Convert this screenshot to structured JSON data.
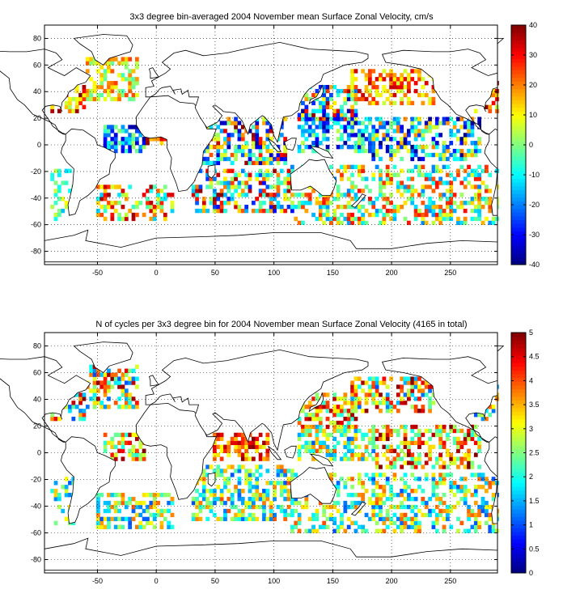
{
  "chart_data": [
    {
      "type": "heatmap",
      "title": "3x3 degree bin-averaged 2004 November mean Surface Zonal Velocity, cm/s",
      "xlabel": "",
      "ylabel": "",
      "xlim": [
        -95,
        290
      ],
      "ylim": [
        -90,
        90
      ],
      "x_ticks": [
        -50,
        0,
        50,
        100,
        150,
        200,
        250
      ],
      "y_ticks": [
        -80,
        -60,
        -40,
        -20,
        0,
        20,
        40,
        60,
        80
      ],
      "grid": true,
      "bin_size_deg": 3,
      "colorbar": {
        "min": -40,
        "max": 40,
        "ticks": [
          -40,
          -30,
          -20,
          -10,
          0,
          10,
          20,
          30,
          40
        ],
        "colormap": "jet"
      },
      "regions": [
        {
          "lon": [
            -60,
            -15
          ],
          "lat": [
            35,
            65
          ],
          "range": [
            -5,
            25
          ],
          "density": 0.55
        },
        {
          "lon": [
            -90,
            -60
          ],
          "lat": [
            25,
            45
          ],
          "range": [
            0,
            40
          ],
          "density": 0.55
        },
        {
          "lon": [
            -45,
            -10
          ],
          "lat": [
            -5,
            15
          ],
          "range": [
            -40,
            5
          ],
          "density": 0.6
        },
        {
          "lon": [
            -10,
            15
          ],
          "lat": [
            0,
            8
          ],
          "range": [
            10,
            40
          ],
          "density": 0.6
        },
        {
          "lon": [
            -50,
            15
          ],
          "lat": [
            -55,
            -30
          ],
          "range": [
            -15,
            40
          ],
          "density": 0.45
        },
        {
          "lon": [
            -90,
            -70
          ],
          "lat": [
            -55,
            -20
          ],
          "range": [
            -15,
            10
          ],
          "density": 0.35
        },
        {
          "lon": [
            40,
            110
          ],
          "lat": [
            -15,
            20
          ],
          "range": [
            -40,
            40
          ],
          "density": 0.55
        },
        {
          "lon": [
            30,
            115
          ],
          "lat": [
            -50,
            -20
          ],
          "range": [
            -30,
            40
          ],
          "density": 0.5
        },
        {
          "lon": [
            120,
            170
          ],
          "lat": [
            20,
            45
          ],
          "range": [
            -40,
            40
          ],
          "density": 0.6
        },
        {
          "lon": [
            120,
            185
          ],
          "lat": [
            -5,
            20
          ],
          "range": [
            -40,
            5
          ],
          "density": 0.6
        },
        {
          "lon": [
            165,
            235
          ],
          "lat": [
            30,
            55
          ],
          "range": [
            5,
            35
          ],
          "density": 0.55
        },
        {
          "lon": [
            185,
            275
          ],
          "lat": [
            -12,
            20
          ],
          "range": [
            -40,
            20
          ],
          "density": 0.55
        },
        {
          "lon": [
            115,
            290
          ],
          "lat": [
            -60,
            -15
          ],
          "range": [
            -20,
            30
          ],
          "density": 0.45
        },
        {
          "lon": [
            270,
            290
          ],
          "lat": [
            25,
            50
          ],
          "range": [
            0,
            40
          ],
          "density": 0.5
        }
      ]
    },
    {
      "type": "heatmap",
      "title": "N of cycles per 3x3 degree bin for 2004 November mean Surface Zonal Velocity (4165 in total)",
      "xlabel": "",
      "ylabel": "",
      "xlim": [
        -95,
        290
      ],
      "ylim": [
        -90,
        90
      ],
      "x_ticks": [
        -50,
        0,
        50,
        100,
        150,
        200,
        250
      ],
      "y_ticks": [
        -80,
        -60,
        -40,
        -20,
        0,
        20,
        40,
        60,
        80
      ],
      "grid": true,
      "bin_size_deg": 3,
      "total_cycles": 4165,
      "colorbar": {
        "min": 0,
        "max": 5,
        "ticks": [
          0,
          0.5,
          1,
          1.5,
          2,
          2.5,
          3,
          3.5,
          4,
          4.5,
          5
        ],
        "colormap": "jet"
      },
      "regions": [
        {
          "lon": [
            -60,
            -15
          ],
          "lat": [
            35,
            65
          ],
          "range": [
            1,
            5
          ],
          "density": 0.55
        },
        {
          "lon": [
            -90,
            -60
          ],
          "lat": [
            25,
            45
          ],
          "range": [
            1,
            5
          ],
          "density": 0.55
        },
        {
          "lon": [
            -45,
            -10
          ],
          "lat": [
            -5,
            15
          ],
          "range": [
            2,
            5
          ],
          "density": 0.6
        },
        {
          "lon": [
            -50,
            15
          ],
          "lat": [
            -55,
            -30
          ],
          "range": [
            1,
            4
          ],
          "density": 0.45
        },
        {
          "lon": [
            -90,
            -70
          ],
          "lat": [
            -55,
            -20
          ],
          "range": [
            1,
            3.5
          ],
          "density": 0.35
        },
        {
          "lon": [
            50,
            95
          ],
          "lat": [
            -5,
            15
          ],
          "range": [
            3,
            5
          ],
          "density": 0.7
        },
        {
          "lon": [
            30,
            115
          ],
          "lat": [
            -50,
            -10
          ],
          "range": [
            1,
            4
          ],
          "density": 0.5
        },
        {
          "lon": [
            120,
            170
          ],
          "lat": [
            20,
            45
          ],
          "range": [
            2,
            5
          ],
          "density": 0.6
        },
        {
          "lon": [
            120,
            185
          ],
          "lat": [
            -5,
            20
          ],
          "range": [
            1,
            4
          ],
          "density": 0.55
        },
        {
          "lon": [
            165,
            235
          ],
          "lat": [
            30,
            55
          ],
          "range": [
            1,
            5
          ],
          "density": 0.55
        },
        {
          "lon": [
            185,
            275
          ],
          "lat": [
            -12,
            20
          ],
          "range": [
            2,
            5
          ],
          "density": 0.55
        },
        {
          "lon": [
            115,
            290
          ],
          "lat": [
            -60,
            -15
          ],
          "range": [
            1,
            4
          ],
          "density": 0.45
        },
        {
          "lon": [
            270,
            290
          ],
          "lat": [
            25,
            50
          ],
          "range": [
            1,
            4
          ],
          "density": 0.5
        }
      ]
    }
  ]
}
